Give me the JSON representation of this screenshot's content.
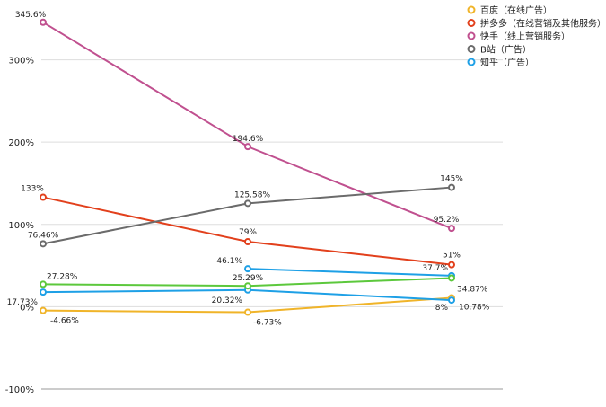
{
  "chart_data": {
    "type": "line",
    "x": [
      "",
      "",
      ""
    ],
    "ylim": [
      -100,
      345.6
    ],
    "yticks": [
      {
        "value": 300,
        "label": "300%"
      },
      {
        "value": 200,
        "label": "200%"
      },
      {
        "value": 100,
        "label": "100%"
      },
      {
        "value": 0,
        "label": "0%"
      },
      {
        "value": -100,
        "label": "-100%"
      }
    ],
    "grid": true,
    "legend_position": "top-right",
    "series": [
      {
        "name": "百度（在线广告）",
        "color": "#f0b429",
        "values": [
          -4.66,
          -6.73,
          10.78
        ],
        "labels": [
          "-4.66%",
          "-6.73%",
          "10.78%"
        ]
      },
      {
        "name": "拼多多（在线营销及其他服务）",
        "color": "#e2401c",
        "values": [
          133,
          79,
          51
        ],
        "labels": [
          "133%",
          "79%",
          "51%"
        ]
      },
      {
        "name": "快手（线上营销服务）",
        "color": "#c0508f",
        "values": [
          345.6,
          194.6,
          95.2
        ],
        "labels": [
          "345.6%",
          "194.6%",
          "95.2%"
        ]
      },
      {
        "name": "B站（广告）",
        "color": "#6b6b6b",
        "values": [
          76.46,
          125.58,
          145
        ],
        "labels": [
          "76.46%",
          "125.58%",
          "145%"
        ]
      },
      {
        "name": "知乎（广告）",
        "color": "#1ea0e6",
        "values": [
          17.73,
          20.32,
          8
        ],
        "labels": [
          "17.73%",
          "20.32%",
          "8%"
        ]
      },
      {
        "name": "",
        "color": "#1ea0e6",
        "values": [
          null,
          46.1,
          37.7
        ],
        "labels": [
          "",
          "46.1%",
          "37.7%"
        ]
      },
      {
        "name": "",
        "color": "#5cc83c",
        "values": [
          27.28,
          25.29,
          34.87
        ],
        "labels": [
          "27.28%",
          "25.29%",
          "34.87%"
        ]
      }
    ]
  }
}
